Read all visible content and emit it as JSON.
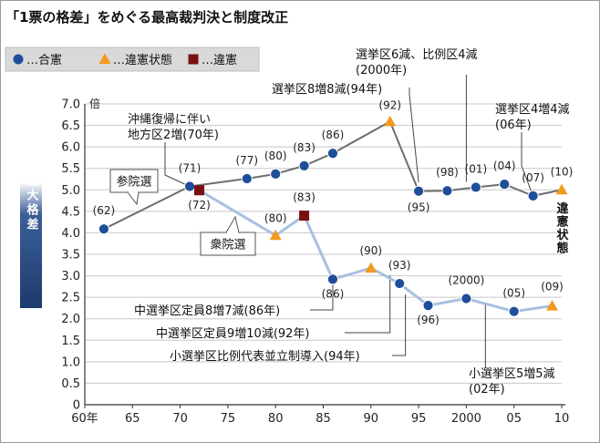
{
  "chart_data": {
    "type": "line",
    "title": "「1票の格差」をめぐる最高裁判決と制度改正",
    "ylabel": "最大格差",
    "y_unit": "倍",
    "ylim": [
      0,
      7.0
    ],
    "xlim": [
      1960,
      2010
    ],
    "x_ticks": [
      {
        "x": 1960,
        "label": "60年"
      },
      {
        "x": 1965,
        "label": "65"
      },
      {
        "x": 1970,
        "label": "70"
      },
      {
        "x": 1975,
        "label": "75"
      },
      {
        "x": 1980,
        "label": "80"
      },
      {
        "x": 1985,
        "label": "85"
      },
      {
        "x": 1990,
        "label": "90"
      },
      {
        "x": 1995,
        "label": "95"
      },
      {
        "x": 2000,
        "label": "2000"
      },
      {
        "x": 2005,
        "label": "05"
      },
      {
        "x": 2010,
        "label": "10"
      }
    ],
    "y_ticks": [
      {
        "y": 0,
        "label": "0"
      },
      {
        "y": 0.5,
        "label": "0.5"
      },
      {
        "y": 1.0,
        "label": "1.0"
      },
      {
        "y": 1.5,
        "label": "1.5"
      },
      {
        "y": 2.0,
        "label": "2.0"
      },
      {
        "y": 2.5,
        "label": "2.5"
      },
      {
        "y": 3.0,
        "label": "3.0"
      },
      {
        "y": 3.5,
        "label": "3.5"
      },
      {
        "y": 4.0,
        "label": "4.0"
      },
      {
        "y": 4.5,
        "label": "4.5"
      },
      {
        "y": 5.0,
        "label": "5.0"
      },
      {
        "y": 5.5,
        "label": "5.5"
      },
      {
        "y": 6.0,
        "label": "6.0"
      },
      {
        "y": 6.5,
        "label": "6.5"
      },
      {
        "y": 7.0,
        "label": "7.0"
      }
    ],
    "grid": "horizontal",
    "legend_position": "top-left",
    "legend": [
      {
        "marker": "circle",
        "label": "…合憲",
        "color": "#1f4e9a"
      },
      {
        "marker": "triangle",
        "label": "…違憲状態",
        "color": "#f39a1e"
      },
      {
        "marker": "square",
        "label": "…違憲",
        "color": "#7a1014"
      }
    ],
    "colors": {
      "upper_line": "#6e6e6e",
      "lower_line": "#a8bfe0",
      "constitutional": "#1f4e9a",
      "unconstitutional_state": "#f39a1e",
      "unconstitutional": "#7a1014",
      "grid": "#c8c8c8"
    },
    "series": [
      {
        "name": "参院選",
        "points": [
          {
            "x": 1962,
            "y": 4.09,
            "label": "(62)",
            "ruling": "合憲"
          },
          {
            "x": 1971,
            "y": 5.08,
            "label": "(71)",
            "ruling": "合憲"
          },
          {
            "x": 1977,
            "y": 5.26,
            "label": "(77)",
            "ruling": "合憲"
          },
          {
            "x": 1980,
            "y": 5.37,
            "label": "(80)",
            "ruling": "合憲"
          },
          {
            "x": 1983,
            "y": 5.56,
            "label": "(83)",
            "ruling": "合憲"
          },
          {
            "x": 1986,
            "y": 5.85,
            "label": "(86)",
            "ruling": "合憲"
          },
          {
            "x": 1992,
            "y": 6.59,
            "label": "(92)",
            "ruling": "違憲状態"
          },
          {
            "x": 1995,
            "y": 4.97,
            "label": "(95)",
            "ruling": "合憲"
          },
          {
            "x": 1998,
            "y": 4.98,
            "label": "(98)",
            "ruling": "合憲"
          },
          {
            "x": 2001,
            "y": 5.06,
            "label": "(01)",
            "ruling": "合憲"
          },
          {
            "x": 2004,
            "y": 5.13,
            "label": "(04)",
            "ruling": "合憲"
          },
          {
            "x": 2007,
            "y": 4.86,
            "label": "(07)",
            "ruling": "合憲"
          },
          {
            "x": 2010,
            "y": 5.0,
            "label": "(10)",
            "ruling": "違憲状態"
          }
        ]
      },
      {
        "name": "衆院選",
        "points": [
          {
            "x": 1972,
            "y": 4.99,
            "label": "(72)",
            "ruling": "違憲"
          },
          {
            "x": 1980,
            "y": 3.94,
            "label": "(80)",
            "ruling": "違憲状態"
          },
          {
            "x": 1983,
            "y": 4.4,
            "label": "(83)",
            "ruling": "違憲"
          },
          {
            "x": 1986,
            "y": 2.92,
            "label": "(86)",
            "ruling": "合憲"
          },
          {
            "x": 1990,
            "y": 3.18,
            "label": "(90)",
            "ruling": "違憲状態"
          },
          {
            "x": 1993,
            "y": 2.82,
            "label": "(93)",
            "ruling": "合憲"
          },
          {
            "x": 1996,
            "y": 2.31,
            "label": "(96)",
            "ruling": "合憲"
          },
          {
            "x": 2000,
            "y": 2.47,
            "label": "(2000)",
            "ruling": "合憲"
          },
          {
            "x": 2005,
            "y": 2.17,
            "label": "(05)",
            "ruling": "合憲"
          },
          {
            "x": 2009,
            "y": 2.3,
            "label": "(09)",
            "ruling": "違憲状態"
          }
        ]
      }
    ],
    "annotations": [
      {
        "id": "okinawa",
        "lines": [
          "沖縄復帰に伴い",
          "地方区2増(70年)"
        ],
        "x": 1970
      },
      {
        "id": "upper8",
        "lines": [
          "選挙区8増8減(94年)"
        ],
        "x": 1994
      },
      {
        "id": "upper6",
        "lines": [
          "選挙区6減、比例区4減",
          "(2000年)"
        ],
        "x": 2000
      },
      {
        "id": "upper4",
        "lines": [
          "選挙区4増4減",
          "(06年)"
        ],
        "x": 2006
      },
      {
        "id": "lower86",
        "lines": [
          "中選挙区定員8増7減(86年)"
        ],
        "x": 1986
      },
      {
        "id": "lower92",
        "lines": [
          "中選挙区定員9増10減(92年)"
        ],
        "x": 1992
      },
      {
        "id": "lower94",
        "lines": [
          "小選挙区比例代表並立制導入(94年)"
        ],
        "x": 1994
      },
      {
        "id": "lower02",
        "lines": [
          "小選挙区5増5減",
          "(02年)"
        ],
        "x": 2002
      },
      {
        "id": "status2010",
        "lines": [
          "違",
          "憲",
          "状",
          "態"
        ],
        "x": 2010
      }
    ]
  }
}
